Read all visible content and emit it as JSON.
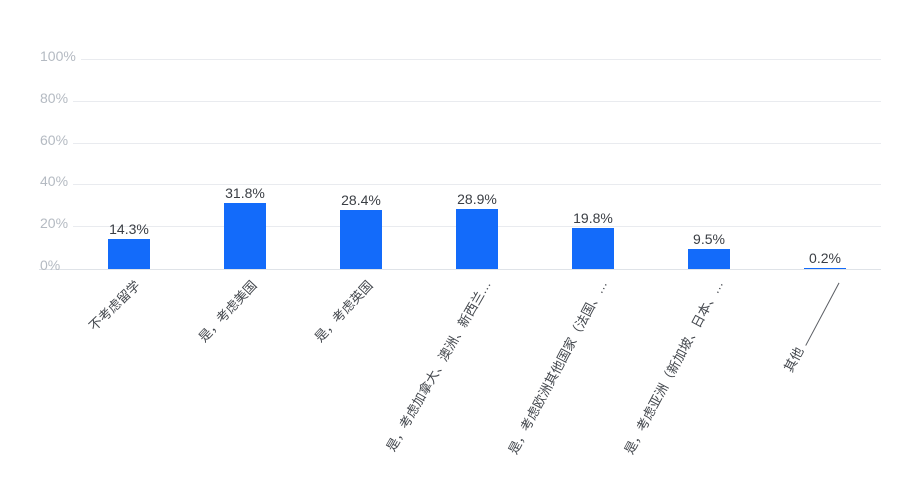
{
  "chart_data": {
    "type": "bar",
    "categories": [
      "不考虑留学",
      "是，考虑美国",
      "是，考虑英国",
      "是，考虑加拿大、澳洲、新西兰…",
      "是，考虑欧洲其他国家（法国、…",
      "是，考虑亚洲（新加坡、日本、…",
      "其他"
    ],
    "values": [
      14.3,
      31.8,
      28.4,
      28.9,
      19.8,
      9.5,
      0.2
    ],
    "value_labels": [
      "14.3%",
      "31.8%",
      "28.4%",
      "28.9%",
      "19.8%",
      "9.5%",
      "0.2%"
    ],
    "y_ticks": [
      {
        "value": 0,
        "label": "0%"
      },
      {
        "value": 20,
        "label": "20%"
      },
      {
        "value": 40,
        "label": "40%"
      },
      {
        "value": 60,
        "label": "60%"
      },
      {
        "value": 80,
        "label": "80%"
      },
      {
        "value": 100,
        "label": "100%"
      }
    ],
    "ylim": [
      0,
      100
    ],
    "grid": true,
    "legend_position": "none",
    "last_category_has_leader_line": true
  },
  "colors": {
    "bar": "#136BFA",
    "gridline": "#E9EBEF",
    "axis_line": "#DFE3E8",
    "y_tick_text": "#B4BAC2",
    "x_tick_text": "#43474D",
    "value_text": "#3A3E44",
    "leader_line": "#5A5D63",
    "background": "#FFFFFF"
  }
}
